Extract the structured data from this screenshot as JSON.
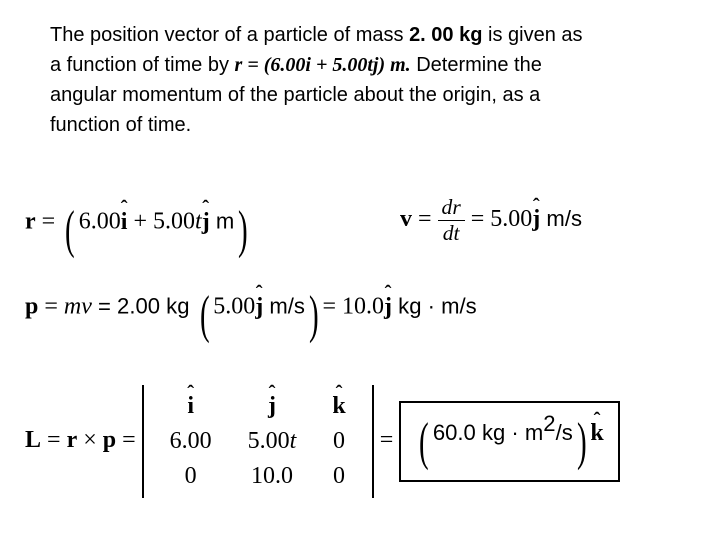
{
  "problem": {
    "line1a": "The position vector of a particle of mass ",
    "mass": "2. 00 kg",
    "line1b": " is given as",
    "line2a": "a function of time by ",
    "inline_r": "r = (6.00i + 5.00tj) m.",
    "line2b": " Determine the",
    "line3": "angular momentum of the particle about the origin, as a",
    "line4": "function of time."
  },
  "eq_r": {
    "lhs": "r",
    "eq": " = ",
    "body1": "6.00",
    "unit_i": "i",
    "plus": " + 5.00",
    "t": "t",
    "unit_j": "j",
    "unit": "  m"
  },
  "eq_v": {
    "lhs": "v",
    "eq": " = ",
    "num": "dr",
    "den": "dt",
    "eq2": " = 5.00",
    "unit_j": "j",
    "unit": "  m/s"
  },
  "eq_p": {
    "lhs": "p",
    "eq": " = ",
    "mv": "mv",
    "eq2": " = 2.00 kg ",
    "val": "5.00",
    "unit_j": "j",
    "unit_in": "  m/s",
    "eq3": "= 10.0",
    "unit_j2": "j",
    "unit_out": "  kg · m/s"
  },
  "eq_L": {
    "lhs": "L",
    "eq": " = ",
    "rxp_r": "r",
    "times": " × ",
    "rxp_p": "p",
    "eq2": " = ",
    "det": {
      "i": "i",
      "j": "j",
      "k": "k",
      "r1": "6.00",
      "r2": "5.00",
      "r2_t": "t",
      "r3": "0",
      "p1": "0",
      "p2": "10.0",
      "p3": "0"
    },
    "eq3": " = ",
    "result_val": "60.0 kg · m",
    "result_exp": "2",
    "result_per": "/s",
    "unit_k": "k"
  }
}
